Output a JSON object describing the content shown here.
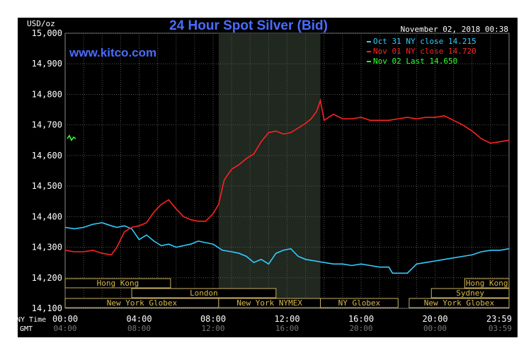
{
  "chart_data": {
    "type": "line",
    "title": "24 Hour Spot Silver (Bid)",
    "watermark": "www.kitco.com",
    "timestamp": "November 02, 2018 00:38",
    "ylabel": "USD/oz",
    "ylim": [
      14.1,
      15.0
    ],
    "yticks": [
      {
        "value": 15.0,
        "label": "15,000"
      },
      {
        "value": 14.9,
        "label": "14,900"
      },
      {
        "value": 14.8,
        "label": "14,800"
      },
      {
        "value": 14.7,
        "label": "14,700"
      },
      {
        "value": 14.6,
        "label": "14,600"
      },
      {
        "value": 14.5,
        "label": "14,500"
      },
      {
        "value": 14.4,
        "label": "14,400"
      },
      {
        "value": 14.3,
        "label": "14,300"
      },
      {
        "value": 14.2,
        "label": "14,200"
      },
      {
        "value": 14.1,
        "label": "14,100"
      }
    ],
    "xlim": [
      0,
      24
    ],
    "xticks": [
      {
        "hour": 0,
        "ny": "00:00",
        "gmt": "04:00"
      },
      {
        "hour": 4,
        "ny": "04:00",
        "gmt": "08:00"
      },
      {
        "hour": 8,
        "ny": "08:00",
        "gmt": "12:00"
      },
      {
        "hour": 12,
        "ny": "12:00",
        "gmt": "16:00"
      },
      {
        "hour": 16,
        "ny": "16:00",
        "gmt": "20:00"
      },
      {
        "hour": 20,
        "ny": "20:00",
        "gmt": "00:00"
      },
      {
        "hour": 24,
        "ny": "23:59",
        "gmt": "03:59"
      }
    ],
    "x_row_labels": {
      "ny": "NY Time",
      "gmt": "GMT"
    },
    "shaded_region": [
      8.3,
      13.8
    ],
    "grid": true,
    "legend_position": "top-right",
    "sessions": [
      {
        "label": "Hong Kong",
        "start": 0.0,
        "end": 5.7,
        "row": 0
      },
      {
        "label": "Hong Kong",
        "start": 21.6,
        "end": 24.0,
        "row": 0
      },
      {
        "label": "London",
        "start": 3.6,
        "end": 11.4,
        "row": 1
      },
      {
        "label": "Sydney",
        "start": 19.8,
        "end": 24.0,
        "row": 1
      },
      {
        "label": "New York Globex",
        "start": 0.0,
        "end": 8.3,
        "row": 2
      },
      {
        "label": "New York NYMEX",
        "start": 8.3,
        "end": 13.8,
        "row": 2
      },
      {
        "label": "NY Globex",
        "start": 13.8,
        "end": 18.0,
        "row": 2
      },
      {
        "label": "New York Globex",
        "start": 18.6,
        "end": 24.0,
        "row": 2
      }
    ],
    "series": [
      {
        "name": "Oct 31 NY close 14.215",
        "color": "#33ccff",
        "x": [
          0,
          0.5,
          1,
          1.5,
          2,
          2.5,
          2.8,
          3.2,
          3.6,
          4,
          4.4,
          4.8,
          5.2,
          5.6,
          6,
          6.4,
          6.8,
          7.2,
          7.6,
          8,
          8.5,
          9,
          9.4,
          9.8,
          10.2,
          10.6,
          11,
          11.4,
          11.8,
          12.2,
          12.6,
          13,
          13.5,
          14,
          14.5,
          15,
          15.5,
          16,
          16.5,
          17,
          17.5,
          17.7,
          18,
          18.5,
          19,
          19.5,
          20,
          20.5,
          21,
          21.5,
          22,
          22.5,
          23,
          23.5,
          24
        ],
        "y": [
          14.365,
          14.36,
          14.365,
          14.375,
          14.38,
          14.37,
          14.365,
          14.37,
          14.36,
          14.325,
          14.34,
          14.32,
          14.305,
          14.31,
          14.3,
          14.305,
          14.31,
          14.32,
          14.315,
          14.31,
          14.29,
          14.285,
          14.28,
          14.27,
          14.25,
          14.26,
          14.245,
          14.28,
          14.29,
          14.295,
          14.27,
          14.26,
          14.255,
          14.25,
          14.245,
          14.245,
          14.24,
          14.245,
          14.24,
          14.235,
          14.235,
          14.215,
          14.215,
          14.215,
          14.245,
          14.25,
          14.255,
          14.26,
          14.265,
          14.27,
          14.275,
          14.285,
          14.29,
          14.29,
          14.295
        ]
      },
      {
        "name": "Nov 01 NY close 14.720",
        "color": "#ff2222",
        "x": [
          0,
          0.5,
          1,
          1.5,
          2,
          2.5,
          2.8,
          3.2,
          3.6,
          4,
          4.4,
          4.8,
          5.2,
          5.6,
          6,
          6.4,
          6.8,
          7.2,
          7.6,
          8,
          8.3,
          8.6,
          9,
          9.4,
          9.8,
          10.2,
          10.6,
          11,
          11.4,
          11.8,
          12.2,
          12.6,
          13,
          13.3,
          13.6,
          13.8,
          14,
          14.5,
          15,
          15.5,
          16,
          16.5,
          17,
          17.5,
          18,
          18.5,
          19,
          19.5,
          20,
          20.5,
          21,
          21.5,
          22,
          22.5,
          23,
          23.5,
          24
        ],
        "y": [
          14.29,
          14.285,
          14.285,
          14.29,
          14.28,
          14.275,
          14.3,
          14.35,
          14.365,
          14.37,
          14.38,
          14.415,
          14.44,
          14.455,
          14.425,
          14.4,
          14.39,
          14.385,
          14.385,
          14.41,
          14.44,
          14.52,
          14.555,
          14.57,
          14.59,
          14.605,
          14.645,
          14.675,
          14.68,
          14.67,
          14.675,
          14.69,
          14.705,
          14.72,
          14.745,
          14.78,
          14.715,
          14.735,
          14.72,
          14.72,
          14.725,
          14.715,
          14.715,
          14.715,
          14.72,
          14.725,
          14.72,
          14.725,
          14.725,
          14.73,
          14.715,
          14.7,
          14.68,
          14.655,
          14.64,
          14.645,
          14.65
        ]
      },
      {
        "name": "Nov 02 Last 14.650",
        "color": "#33ff33",
        "x": [
          0,
          0.1,
          0.2,
          0.3,
          0.4
        ],
        "y": [
          14.655,
          14.665,
          14.65,
          14.66,
          14.655
        ]
      }
    ]
  }
}
